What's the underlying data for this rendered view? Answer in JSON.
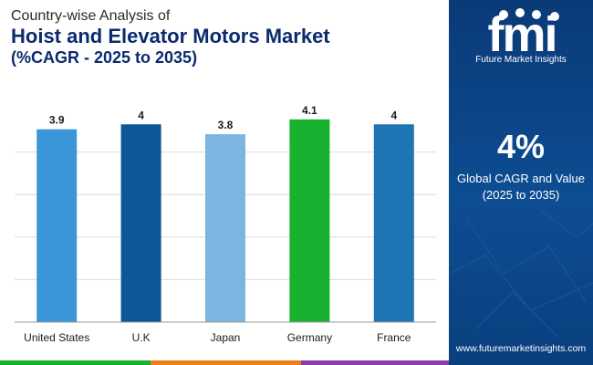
{
  "header": {
    "subtitle": "Country-wise Analysis of",
    "title": "Hoist and Elevator Motors Market",
    "title_sub": "(%CAGR - 2025 to 2035)"
  },
  "chart_data": {
    "type": "bar",
    "title": "Hoist and Elevator Motors Market",
    "subtitle": "(%CAGR - 2025 to 2035)",
    "categories": [
      "United States",
      "U.K",
      "Japan",
      "Germany",
      "France"
    ],
    "values": [
      3.9,
      4,
      3.8,
      4.1,
      4
    ],
    "value_labels": [
      "3.9",
      "4",
      "3.8",
      "4.1",
      "4"
    ],
    "bar_colors": [
      "#3a96d8",
      "#0c5897",
      "#7cb6e0",
      "#19b230",
      "#1f74b4"
    ],
    "xlabel": "",
    "ylabel": "",
    "ylim": [
      0,
      4.3
    ],
    "gridlines": [
      0.86,
      1.72,
      2.58,
      3.44
    ],
    "grid": true
  },
  "sidebar": {
    "logo_letters": "fmi",
    "logo_name": "Future Market Insights",
    "big_value": "4%",
    "value_label_line1": "Global CAGR and Value",
    "value_label_line2": "(2025 to 2035)",
    "website": "www.futuremarketinsights.com"
  },
  "colors": {
    "title": "#0b2a6f",
    "sidebar_top": "#0a3a78",
    "strip": [
      "#19b230",
      "#f07f1a",
      "#8a3fa6",
      "#0c5897"
    ]
  }
}
